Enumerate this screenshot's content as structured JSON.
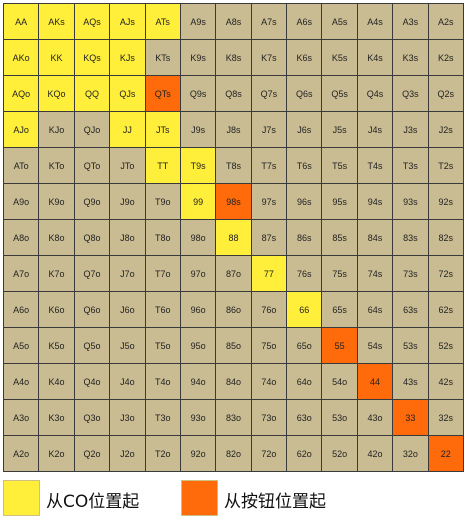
{
  "chart_data": {
    "type": "table",
    "title": "",
    "rows": [
      [
        "AA",
        "AKs",
        "AQs",
        "AJs",
        "ATs",
        "A9s",
        "A8s",
        "A7s",
        "A6s",
        "A5s",
        "A4s",
        "A3s",
        "A2s"
      ],
      [
        "AKo",
        "KK",
        "KQs",
        "KJs",
        "KTs",
        "K9s",
        "K8s",
        "K7s",
        "K6s",
        "K5s",
        "K4s",
        "K3s",
        "K2s"
      ],
      [
        "AQo",
        "KQo",
        "QQ",
        "QJs",
        "QTs",
        "Q9s",
        "Q8s",
        "Q7s",
        "Q6s",
        "Q5s",
        "Q4s",
        "Q3s",
        "Q2s"
      ],
      [
        "AJo",
        "KJo",
        "QJo",
        "JJ",
        "JTs",
        "J9s",
        "J8s",
        "J7s",
        "J6s",
        "J5s",
        "J4s",
        "J3s",
        "J2s"
      ],
      [
        "ATo",
        "KTo",
        "QTo",
        "JTo",
        "TT",
        "T9s",
        "T8s",
        "T7s",
        "T6s",
        "T5s",
        "T4s",
        "T3s",
        "T2s"
      ],
      [
        "A9o",
        "K9o",
        "Q9o",
        "J9o",
        "T9o",
        "99",
        "98s",
        "97s",
        "96s",
        "95s",
        "94s",
        "93s",
        "92s"
      ],
      [
        "A8o",
        "K8o",
        "Q8o",
        "J8o",
        "T8o",
        "98o",
        "88",
        "87s",
        "86s",
        "85s",
        "84s",
        "83s",
        "82s"
      ],
      [
        "A7o",
        "K7o",
        "Q7o",
        "J7o",
        "T7o",
        "97o",
        "87o",
        "77",
        "76s",
        "75s",
        "74s",
        "73s",
        "72s"
      ],
      [
        "A6o",
        "K6o",
        "Q6o",
        "J6o",
        "T6o",
        "96o",
        "86o",
        "76o",
        "66",
        "65s",
        "64s",
        "63s",
        "62s"
      ],
      [
        "A5o",
        "K5o",
        "Q5o",
        "J5o",
        "T5o",
        "95o",
        "85o",
        "75o",
        "65o",
        "55",
        "54s",
        "53s",
        "52s"
      ],
      [
        "A4o",
        "K4o",
        "Q4o",
        "J4o",
        "T4o",
        "94o",
        "84o",
        "74o",
        "64o",
        "54o",
        "44",
        "43s",
        "42s"
      ],
      [
        "A3o",
        "K3o",
        "Q3o",
        "J3o",
        "T3o",
        "93o",
        "83o",
        "73o",
        "63o",
        "53o",
        "43o",
        "33",
        "32s"
      ],
      [
        "A2o",
        "K2o",
        "Q2o",
        "J2o",
        "T2o",
        "92o",
        "82o",
        "72o",
        "62o",
        "52o",
        "42o",
        "32o",
        "22"
      ]
    ],
    "highlight_co": [
      "AA",
      "AKs",
      "AQs",
      "AJs",
      "ATs",
      "AKo",
      "KK",
      "KQs",
      "KJs",
      "AQo",
      "KQo",
      "QQ",
      "QJs",
      "AJo",
      "JJ",
      "JTs",
      "TT",
      "T9s",
      "99",
      "88",
      "77",
      "66"
    ],
    "highlight_button": [
      "QTs",
      "98s",
      "55",
      "44",
      "33",
      "22"
    ],
    "colors": {
      "default": "#c9bc93",
      "co": "#ffef3a",
      "button": "#ff6a0a",
      "border": "#3a3a3a"
    },
    "legend": [
      {
        "label": "从CO位置起",
        "color": "#ffef3a"
      },
      {
        "label": "从按钮位置起",
        "color": "#ff6a0a"
      }
    ]
  }
}
